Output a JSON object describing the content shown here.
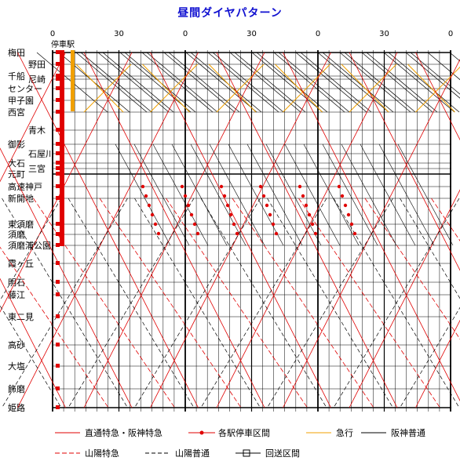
{
  "title": "昼間ダイヤパターン",
  "tick_labels": [
    "0",
    "30",
    "0",
    "30",
    "0",
    "30",
    "0"
  ],
  "column_label": "停車駅",
  "stations": [
    {
      "name": "梅田",
      "indent": false
    },
    {
      "name": "野田",
      "indent": true
    },
    {
      "name": "千船",
      "indent": false
    },
    {
      "name": "尼崎",
      "indent": true
    },
    {
      "name": "センター",
      "indent": false
    },
    {
      "name": "甲子園",
      "indent": false
    },
    {
      "name": "西宮",
      "indent": false
    },
    {
      "name": "青木",
      "indent": true
    },
    {
      "name": "御影",
      "indent": false
    },
    {
      "name": "石屋川",
      "indent": true
    },
    {
      "name": "大石",
      "indent": false
    },
    {
      "name": "三宮",
      "indent": true
    },
    {
      "name": "元町",
      "indent": false
    },
    {
      "name": "高速神戸",
      "indent": false
    },
    {
      "name": "新開地",
      "indent": false
    },
    {
      "name": "東須磨",
      "indent": false
    },
    {
      "name": "須磨",
      "indent": false
    },
    {
      "name": "須磨浦公園",
      "indent": false
    },
    {
      "name": "霞ヶ丘",
      "indent": false
    },
    {
      "name": "明石",
      "indent": false
    },
    {
      "name": "藤江",
      "indent": false
    },
    {
      "name": "東二見",
      "indent": false
    },
    {
      "name": "高砂",
      "indent": false
    },
    {
      "name": "大塩",
      "indent": false
    },
    {
      "name": "飾磨",
      "indent": false
    },
    {
      "name": "姫路",
      "indent": false
    }
  ],
  "legend": [
    {
      "label": "直通特急・阪神特急",
      "style": "red-solid"
    },
    {
      "label": "各駅停車区間",
      "style": "red-dots"
    },
    {
      "label": "急行",
      "style": "orange-solid"
    },
    {
      "label": "阪神普通",
      "style": "black-solid"
    },
    {
      "label": "山陽特急",
      "style": "red-dash"
    },
    {
      "label": "山陽普通",
      "style": "black-dash"
    },
    {
      "label": "回送区間",
      "style": "loop"
    }
  ],
  "colors": {
    "title": "#1010d0",
    "red": "#e00000",
    "orange": "#f0a000",
    "black": "#000000"
  }
}
